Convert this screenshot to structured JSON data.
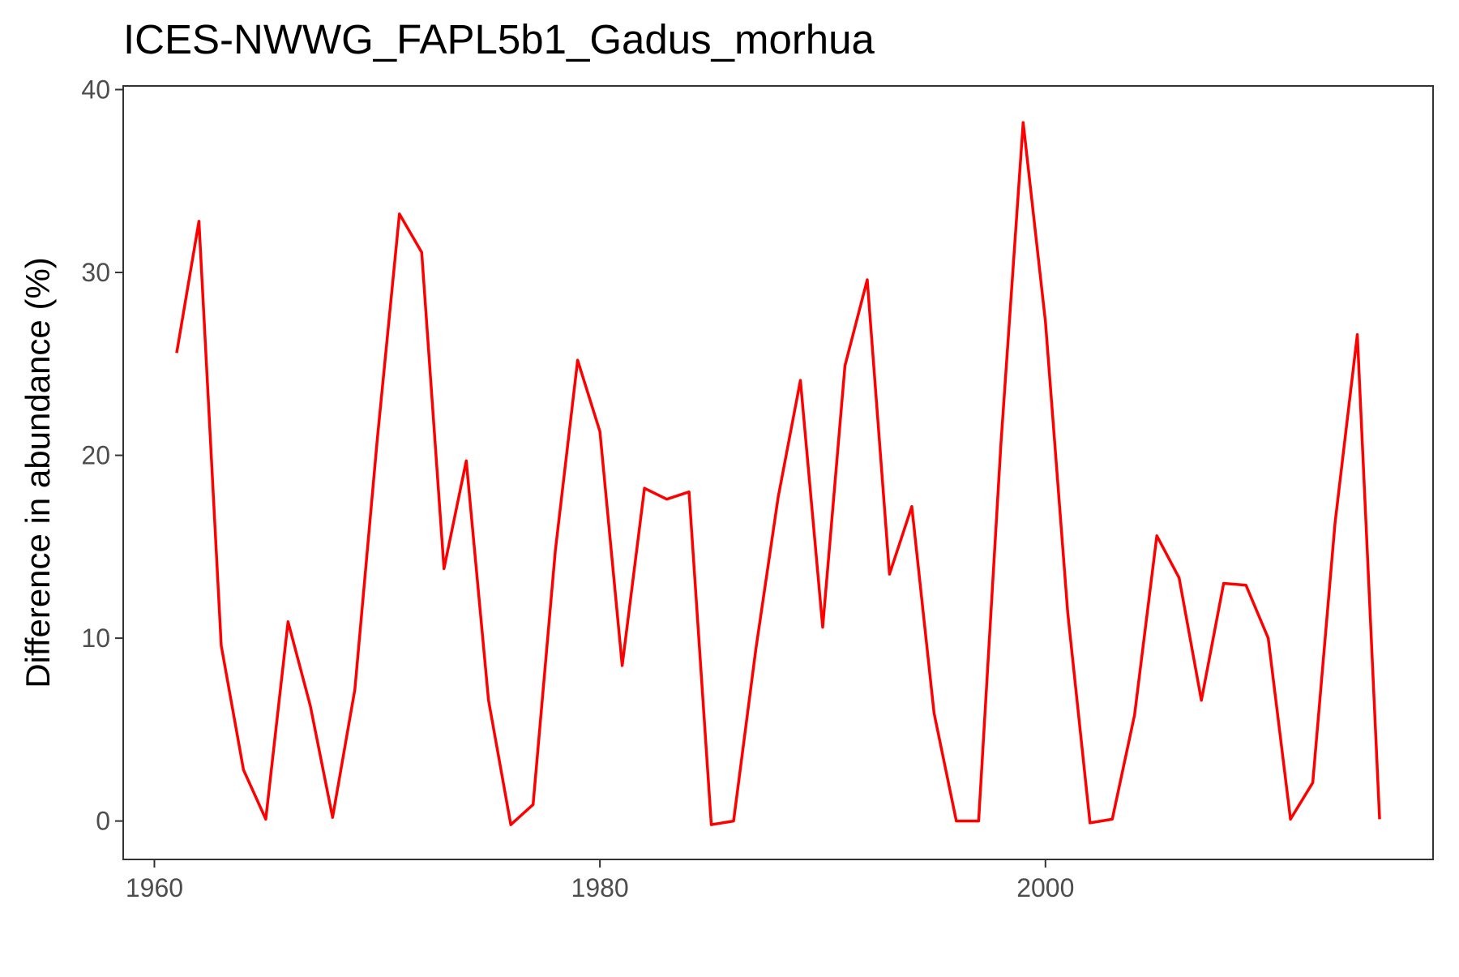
{
  "chart_data": {
    "type": "line",
    "title": "ICES-NWWG_FAPL5b1_Gadus_morhua",
    "xlabel": "",
    "ylabel": "Difference in abundance (%)",
    "xlim": [
      1958.6,
      2017.4
    ],
    "ylim": [
      -2.1,
      40.2
    ],
    "x_ticks": [
      1960,
      1980,
      2000
    ],
    "y_ticks": [
      0,
      10,
      20,
      30,
      40
    ],
    "grid": false,
    "line_color": "#ff0000",
    "series": [
      {
        "x": [
          1961,
          1962,
          1963,
          1964,
          1965,
          1966,
          1967,
          1968,
          1969,
          1970,
          1971,
          1972,
          1973,
          1974,
          1975,
          1976,
          1977,
          1978,
          1979,
          1980,
          1981,
          1982,
          1983,
          1984,
          1985,
          1986,
          1987,
          1988,
          1989,
          1990,
          1991,
          1992,
          1993,
          1994,
          1995,
          1996,
          1997,
          1998,
          1999,
          2000,
          2001,
          2002,
          2003,
          2004,
          2005,
          2006,
          2007,
          2008,
          2009,
          2010,
          2011,
          2012,
          2013,
          2014,
          2015
        ],
        "values": [
          25.6,
          32.8,
          9.6,
          2.8,
          0.1,
          10.9,
          6.3,
          0.2,
          7.2,
          20.8,
          33.2,
          31.1,
          13.8,
          19.7,
          6.6,
          -0.2,
          0.9,
          14.8,
          25.2,
          21.3,
          8.5,
          18.2,
          17.6,
          18.0,
          -0.2,
          0.0,
          9.4,
          17.7,
          24.1,
          10.6,
          24.9,
          29.6,
          13.5,
          17.2,
          5.9,
          0.0,
          0.0,
          20.6,
          38.2,
          27.3,
          11.4,
          -0.1,
          0.1,
          5.8,
          15.6,
          13.3,
          6.6,
          13.0,
          12.9,
          10.0,
          0.1,
          2.1,
          16.3,
          26.6,
          0.1
        ]
      }
    ]
  }
}
